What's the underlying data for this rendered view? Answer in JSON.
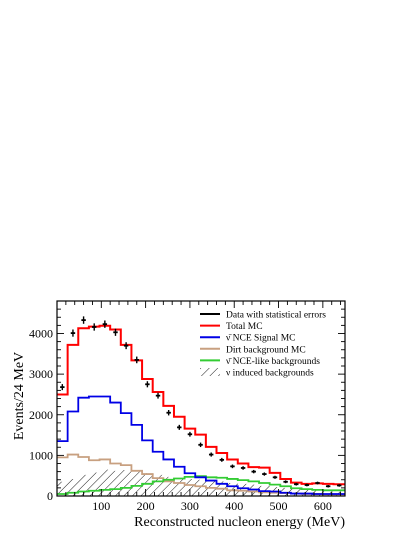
{
  "chart_data": {
    "type": "line",
    "xlabel": "Reconstructed nucleon energy (MeV)",
    "ylabel": "Events/24 MeV",
    "xlim": [
      0,
      650
    ],
    "ylim": [
      0,
      4800
    ],
    "bin_width": 24,
    "x_ticks": [
      "100",
      "200",
      "300",
      "400",
      "500",
      "600"
    ],
    "y_ticks": [
      "0",
      "1000",
      "2000",
      "3000",
      "4000"
    ],
    "legend_position": "top-right",
    "bin_edges": [
      0,
      24,
      48,
      72,
      96,
      120,
      144,
      168,
      192,
      216,
      240,
      264,
      288,
      312,
      336,
      360,
      384,
      408,
      432,
      456,
      480,
      504,
      528,
      552,
      576,
      600,
      624,
      650
    ],
    "series": [
      {
        "name": "Total MC",
        "color": "#ff0000",
        "style": "step",
        "values": [
          2500,
          3720,
          4130,
          4170,
          4190,
          4100,
          3720,
          3340,
          2880,
          2560,
          2220,
          1950,
          1660,
          1510,
          1210,
          1060,
          900,
          800,
          710,
          700,
          570,
          420,
          330,
          300,
          310,
          300,
          290
        ]
      },
      {
        "name": "ν̄ NCE Signal MC",
        "color": "#0000e6",
        "style": "step",
        "values": [
          1350,
          2080,
          2420,
          2450,
          2450,
          2300,
          2040,
          1750,
          1370,
          1090,
          900,
          720,
          560,
          460,
          380,
          300,
          240,
          190,
          160,
          120,
          110,
          80,
          60,
          60,
          50,
          50,
          50
        ]
      },
      {
        "name": "Dirt background MC",
        "color": "#c8a080",
        "style": "step",
        "values": [
          950,
          1020,
          960,
          880,
          900,
          800,
          760,
          620,
          540,
          440,
          360,
          320,
          270,
          240,
          200,
          180,
          140,
          130,
          110,
          90,
          80,
          70,
          60,
          50,
          50,
          40,
          40
        ]
      },
      {
        "name": "ν̄ NCE-like backgrounds",
        "color": "#33cc33",
        "style": "step",
        "values": [
          50,
          80,
          110,
          130,
          150,
          170,
          200,
          250,
          300,
          360,
          400,
          430,
          470,
          490,
          460,
          450,
          420,
          390,
          360,
          320,
          280,
          240,
          190,
          170,
          150,
          140,
          140
        ]
      },
      {
        "name": "ν induced backgrounds",
        "color": "#000000",
        "style": "hatched",
        "values": [
          350,
          420,
          520,
          580,
          650,
          620,
          640,
          600,
          560,
          520,
          470,
          430,
          420,
          400,
          380,
          360,
          320,
          300,
          280,
          250,
          220,
          200,
          180,
          160,
          150,
          140,
          130
        ]
      },
      {
        "name": "Data with statistical errors",
        "color": "#000000",
        "style": "points",
        "x": [
          12,
          36,
          60,
          84,
          108,
          132,
          156,
          180,
          204,
          228,
          252,
          276,
          300,
          324,
          348,
          372,
          396,
          420,
          444,
          468,
          492,
          516,
          540,
          564,
          588,
          612,
          637
        ],
        "values": [
          2680,
          4010,
          4330,
          4160,
          4230,
          4030,
          3700,
          3350,
          2750,
          2470,
          2050,
          1690,
          1520,
          1260,
          1020,
          890,
          730,
          690,
          600,
          540,
          460,
          350,
          290,
          270,
          320,
          240,
          260
        ]
      }
    ]
  }
}
